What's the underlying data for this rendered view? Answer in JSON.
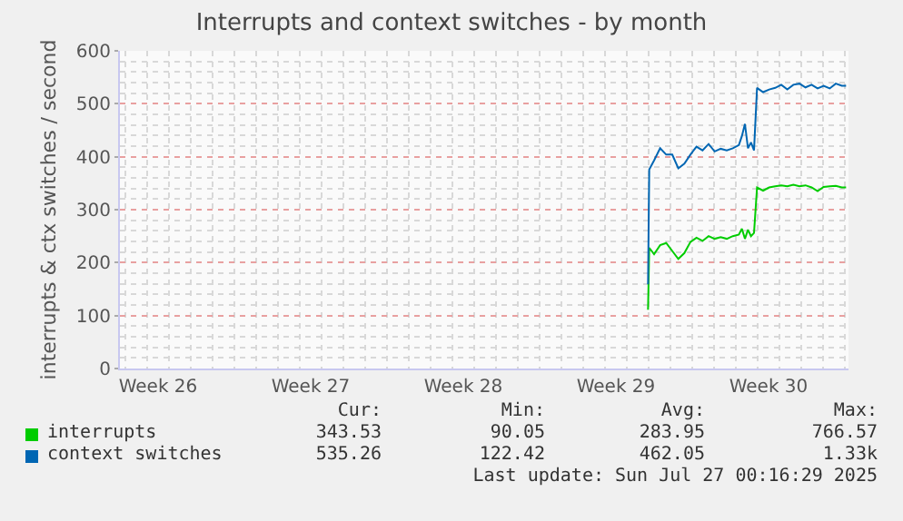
{
  "chart_data": {
    "type": "line",
    "title": "Interrupts and context switches - by month",
    "ylabel": "interrupts & ctx switches / second",
    "x": [
      "2025-07-18T23:20",
      "2025-07-19T00:40",
      "2025-07-19T06:00",
      "2025-07-19T12:40",
      "2025-07-19T19:20",
      "2025-07-20T02:00",
      "2025-07-20T08:40",
      "2025-07-20T15:20",
      "2025-07-20T22:00",
      "2025-07-21T04:40",
      "2025-07-21T11:20",
      "2025-07-21T18:00",
      "2025-07-22T00:40",
      "2025-07-22T07:20",
      "2025-07-22T14:00",
      "2025-07-22T20:40",
      "2025-07-23T03:20",
      "2025-07-23T06:40",
      "2025-07-23T10:00",
      "2025-07-23T13:20",
      "2025-07-23T16:40",
      "2025-07-23T20:00",
      "2025-07-23T23:20",
      "2025-07-24T06:00",
      "2025-07-24T12:40",
      "2025-07-24T19:20",
      "2025-07-25T02:00",
      "2025-07-25T08:40",
      "2025-07-25T15:20",
      "2025-07-25T22:00",
      "2025-07-26T04:40",
      "2025-07-26T11:20",
      "2025-07-26T18:00",
      "2025-07-27T00:40",
      "2025-07-27T07:20",
      "2025-07-27T14:00",
      "2025-07-27T20:40",
      "2025-07-28T01:20"
    ],
    "series": [
      {
        "name": "interrupts",
        "color": "#00cc00",
        "values": [
          111,
          228,
          216,
          233,
          237,
          222,
          207,
          218,
          239,
          247,
          241,
          250,
          245,
          248,
          245,
          250,
          253,
          264,
          245,
          262,
          250,
          256,
          342,
          336,
          342,
          344,
          346,
          344,
          347,
          344,
          346,
          342,
          335,
          343,
          344,
          345,
          342,
          342
        ]
      },
      {
        "name": "context switches",
        "color": "#0066b3",
        "values": [
          159,
          376,
          393,
          416,
          404,
          404,
          378,
          387,
          404,
          419,
          412,
          424,
          410,
          415,
          412,
          416,
          422,
          439,
          462,
          416,
          427,
          412,
          530,
          522,
          527,
          530,
          536,
          527,
          536,
          538,
          531,
          536,
          529,
          534,
          529,
          538,
          534,
          534
        ]
      }
    ],
    "xlim": [
      "2025-06-24T18:00",
      "2025-07-28T04:00"
    ],
    "xticks": [
      {
        "value": "2025-06-26T12:00",
        "label": "Week 26"
      },
      {
        "value": "2025-07-03T12:00",
        "label": "Week 27"
      },
      {
        "value": "2025-07-10T12:00",
        "label": "Week 28"
      },
      {
        "value": "2025-07-17T12:00",
        "label": "Week 29"
      },
      {
        "value": "2025-07-24T12:00",
        "label": "Week 30"
      }
    ],
    "ylim": [
      0,
      600
    ],
    "yticks": [
      0,
      100,
      200,
      300,
      400,
      500,
      600
    ],
    "grid": true,
    "legend": "bottom",
    "annotations": [
      "Cur:",
      "Min:",
      "Avg:",
      "Max:",
      "343.53",
      "90.05",
      "283.95",
      "766.57",
      "535.26",
      "122.42",
      "462.05",
      "1.33k",
      "Last update: Sun Jul 27 00:16:29 2025"
    ]
  }
}
